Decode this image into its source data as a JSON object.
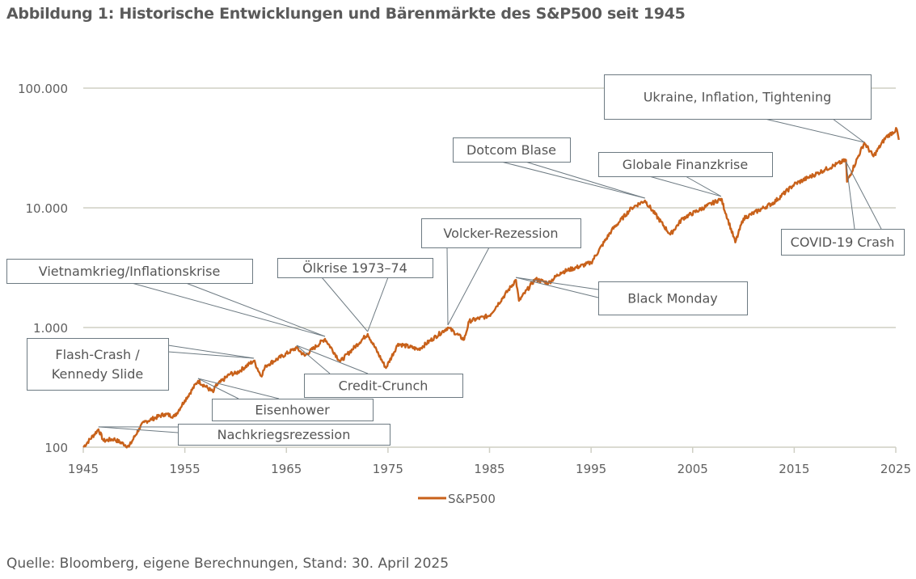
{
  "title": "Abbildung 1: Historische Entwicklungen und Bärenmärkte des S&P500 seit 1945",
  "source": "Quelle: Bloomberg, eigene Berechnungen, Stand: 30. April 2025",
  "chart_data": {
    "type": "line",
    "title": "Abbildung 1: Historische Entwicklungen und Bärenmärkte des S&P500 seit 1945",
    "xlabel": "",
    "ylabel": "",
    "xlim": [
      1945,
      2025
    ],
    "ylim": [
      100,
      100000
    ],
    "yscale": "log",
    "grid": "horizontal",
    "legend_position": "bottom",
    "x_ticks": [
      "1945",
      "1955",
      "1965",
      "1975",
      "1985",
      "1995",
      "2005",
      "2015",
      "2025"
    ],
    "y_ticks": [
      {
        "value": 100,
        "label": "100"
      },
      {
        "value": 1000,
        "label": "1.000"
      },
      {
        "value": 10000,
        "label": "10.000"
      },
      {
        "value": 100000,
        "label": "100.000"
      }
    ],
    "colors": {
      "line": "#c8611a",
      "grid": "#cfcfc4",
      "annotation_border": "#6d7a82"
    },
    "series": [
      {
        "name": "S&P500",
        "x": [
          1945,
          1946.5,
          1947,
          1948,
          1949.5,
          1950.5,
          1951,
          1953,
          1954,
          1955,
          1956.3,
          1957.8,
          1958,
          1959.5,
          1960,
          1961.8,
          1962.5,
          1963,
          1966,
          1966.8,
          1968.8,
          1970.3,
          1973,
          1974.8,
          1976,
          1978,
          1980.9,
          1982.5,
          1983,
          1985,
          1987.6,
          1987.9,
          1989.5,
          1990.8,
          1992,
          1995,
          1997,
          1999,
          2000.3,
          2002.8,
          2004,
          2007.8,
          2009.2,
          2010,
          2013,
          2015,
          2018,
          2020.1,
          2020.2,
          2021.9,
          2022.8,
          2024,
          2025.1,
          2025.3
        ],
        "values": [
          100,
          141,
          113,
          117,
          101,
          143,
          162,
          189,
          181,
          246,
          358,
          288,
          321,
          412,
          412,
          528,
          393,
          481,
          677,
          580,
          804,
          520,
          883,
          459,
          732,
          656,
          1000,
          792,
          1130,
          1260,
          2500,
          1670,
          2540,
          2350,
          2880,
          3480,
          6440,
          10000,
          11500,
          5980,
          8150,
          11900,
          5140,
          8150,
          11100,
          15700,
          20800,
          25100,
          16500,
          35000,
          26900,
          38700,
          45200,
          37000
        ]
      }
    ],
    "annotations": [
      {
        "label": "Ukraine, Inflation, Tightening",
        "year": 2021.9
      },
      {
        "label": "Dotcom Blase",
        "year": 2000.3
      },
      {
        "label": "Globale Finanzkrise",
        "year": 2007.8
      },
      {
        "label": "Volcker-Rezession",
        "year": 1980.9
      },
      {
        "label": "COVID-19 Crash",
        "year": 2020.1
      },
      {
        "label": "Black Monday",
        "year": 1987.6
      },
      {
        "label": "Vietnamkrieg/Inflationskrise",
        "year": 1968.8
      },
      {
        "label": "Ölkrise 1973–74",
        "year": 1973
      },
      {
        "label": "Flash-Crash /\nKennedy Slide",
        "year": 1961.8
      },
      {
        "label": "Credit-Crunch",
        "year": 1966
      },
      {
        "label": "Eisenhower",
        "year": 1956.3
      },
      {
        "label": "Nachkriegsrezession",
        "year": 1946.5
      }
    ]
  }
}
